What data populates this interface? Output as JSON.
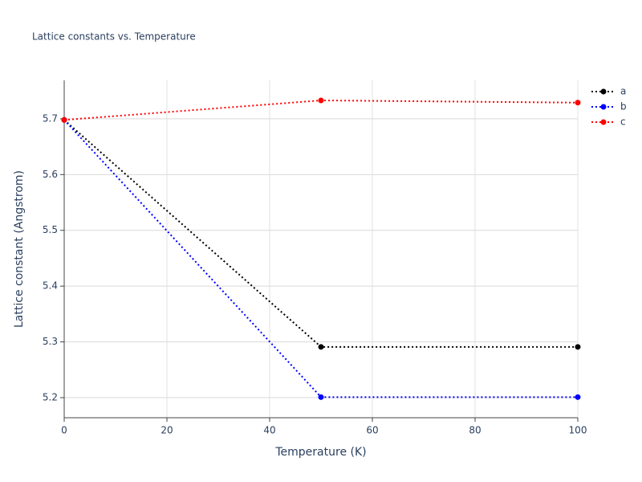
{
  "chart_data": {
    "type": "line",
    "title": "Lattice constants vs. Temperature",
    "x_label": "Temperature (K)",
    "y_label": "Lattice constant (Angstrom)",
    "x": [
      0,
      50,
      100
    ],
    "series": [
      {
        "name": "a",
        "color": "#000000",
        "values": [
          5.698,
          5.291,
          5.291
        ]
      },
      {
        "name": "b",
        "color": "#0000ff",
        "values": [
          5.698,
          5.201,
          5.201
        ]
      },
      {
        "name": "c",
        "color": "#ff0000",
        "values": [
          5.698,
          5.733,
          5.729
        ]
      }
    ],
    "xlim": [
      0,
      100
    ],
    "xticks": [
      0,
      20,
      40,
      60,
      80,
      100
    ],
    "ylim": [
      5.164,
      5.769
    ],
    "yticks": [
      5.2,
      5.3,
      5.4,
      5.5,
      5.6,
      5.7
    ],
    "grid": true,
    "legend": "top-right"
  }
}
